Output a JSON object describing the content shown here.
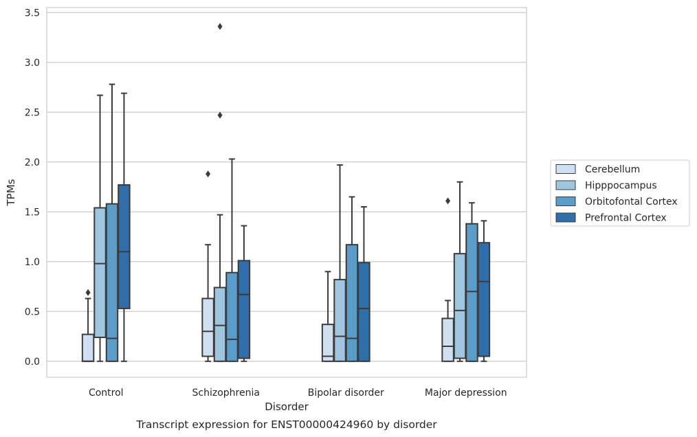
{
  "chart_data": {
    "type": "box",
    "xlabel": "Disorder",
    "ylabel": "TPMs",
    "caption": "Transcript expression for ENST00000424960 by disorder",
    "ylim": [
      -0.16,
      3.55
    ],
    "yticks": [
      "0.0",
      "0.5",
      "1.0",
      "1.5",
      "2.0",
      "2.5",
      "3.0",
      "3.5"
    ],
    "grid": true,
    "legend_position": "right",
    "categories": [
      "Control",
      "Schizophrenia",
      "Bipolar disorder",
      "Major depression"
    ],
    "series": [
      {
        "name": "Cerebellum",
        "color": "#d0e0f0",
        "boxes": [
          {
            "whislo": 0.0,
            "q1": 0.0,
            "med": 0.0,
            "q3": 0.27,
            "whishi": 0.63,
            "fliers": [
              0.69
            ]
          },
          {
            "whislo": 0.0,
            "q1": 0.05,
            "med": 0.3,
            "q3": 0.63,
            "whishi": 1.17,
            "fliers": [
              1.88
            ]
          },
          {
            "whislo": 0.0,
            "q1": 0.0,
            "med": 0.05,
            "q3": 0.37,
            "whishi": 0.9,
            "fliers": []
          },
          {
            "whislo": 0.0,
            "q1": 0.0,
            "med": 0.15,
            "q3": 0.43,
            "whishi": 0.61,
            "fliers": [
              1.61
            ]
          }
        ]
      },
      {
        "name": "Hipppocampus",
        "color": "#9fc6de",
        "boxes": [
          {
            "whislo": 0.0,
            "q1": 0.24,
            "med": 0.98,
            "q3": 1.54,
            "whishi": 2.67,
            "fliers": []
          },
          {
            "whislo": 0.0,
            "q1": 0.0,
            "med": 0.36,
            "q3": 0.74,
            "whishi": 1.47,
            "fliers": [
              3.36,
              2.47
            ]
          },
          {
            "whislo": 0.0,
            "q1": 0.0,
            "med": 0.25,
            "q3": 0.82,
            "whishi": 1.97,
            "fliers": []
          },
          {
            "whislo": 0.0,
            "q1": 0.03,
            "med": 0.51,
            "q3": 1.08,
            "whishi": 1.8,
            "fliers": []
          }
        ]
      },
      {
        "name": "Orbitofontal Cortex",
        "color": "#5b9cc9",
        "boxes": [
          {
            "whislo": 0.0,
            "q1": 0.0,
            "med": 0.23,
            "q3": 1.58,
            "whishi": 2.78,
            "fliers": []
          },
          {
            "whislo": 0.0,
            "q1": 0.0,
            "med": 0.22,
            "q3": 0.89,
            "whishi": 2.03,
            "fliers": []
          },
          {
            "whislo": 0.0,
            "q1": 0.0,
            "med": 0.23,
            "q3": 1.17,
            "whishi": 1.65,
            "fliers": []
          },
          {
            "whislo": 0.0,
            "q1": 0.0,
            "med": 0.7,
            "q3": 1.38,
            "whishi": 1.59,
            "fliers": []
          }
        ]
      },
      {
        "name": "Prefrontal Cortex",
        "color": "#2f6ea8",
        "boxes": [
          {
            "whislo": 0.0,
            "q1": 0.53,
            "med": 1.1,
            "q3": 1.77,
            "whishi": 2.69,
            "fliers": []
          },
          {
            "whislo": 0.0,
            "q1": 0.03,
            "med": 0.67,
            "q3": 1.01,
            "whishi": 1.36,
            "fliers": []
          },
          {
            "whislo": 0.0,
            "q1": 0.0,
            "med": 0.53,
            "q3": 0.99,
            "whishi": 1.55,
            "fliers": []
          },
          {
            "whislo": 0.0,
            "q1": 0.05,
            "med": 0.8,
            "q3": 1.19,
            "whishi": 1.41,
            "fliers": []
          }
        ]
      }
    ]
  }
}
